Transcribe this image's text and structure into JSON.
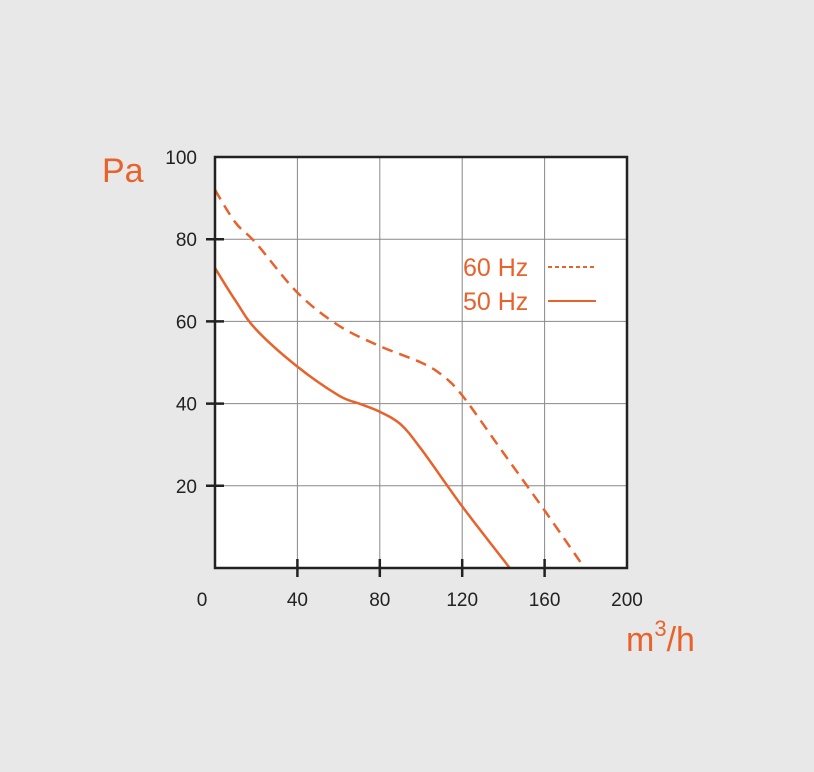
{
  "colors": {
    "background": "#e8e8e8",
    "plot_background": "#ffffff",
    "accent": "#e8622c",
    "axis": "#222222",
    "grid": "#888888"
  },
  "chart_data": {
    "type": "line",
    "title": "",
    "ylabel": "Pa",
    "xlabel": {
      "base": "m",
      "exponent": "3",
      "suffix": "/h"
    },
    "xlim": [
      0,
      200
    ],
    "ylim": [
      0,
      100
    ],
    "x_ticks": [
      "0",
      "40",
      "80",
      "120",
      "160",
      "200"
    ],
    "y_ticks": [
      "20",
      "40",
      "60",
      "80",
      "100"
    ],
    "grid": true,
    "legend_position": "top-right",
    "series": [
      {
        "name": "60 Hz",
        "style": "dashed",
        "x": [
          0,
          10,
          20,
          40,
          60,
          80,
          100,
          110,
          120,
          140,
          160,
          178
        ],
        "y": [
          92,
          84,
          79,
          67,
          59,
          54,
          50,
          47,
          42,
          28,
          14,
          1
        ]
      },
      {
        "name": "50 Hz",
        "style": "solid",
        "x": [
          0,
          10,
          20,
          40,
          60,
          70,
          80,
          90,
          100,
          120,
          140,
          143
        ],
        "y": [
          73,
          65,
          58,
          49,
          42,
          40,
          38,
          35,
          29,
          15,
          2,
          0
        ]
      }
    ]
  }
}
